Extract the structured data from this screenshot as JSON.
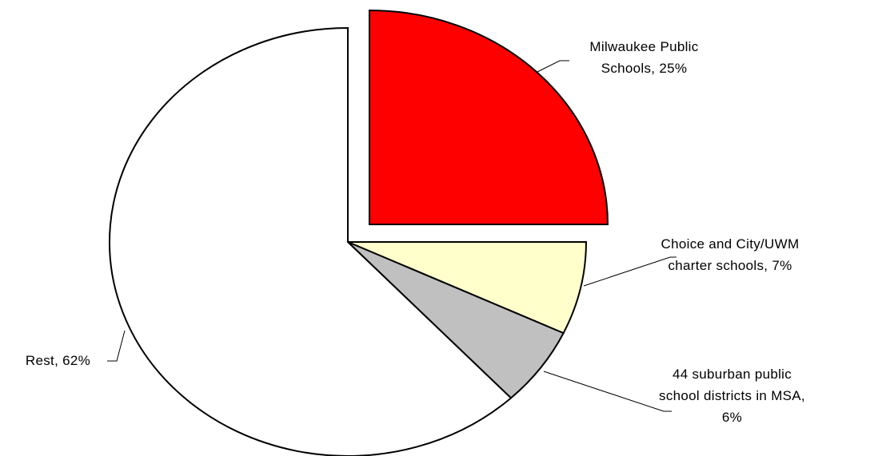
{
  "chart_data": {
    "type": "pie",
    "labels": [
      "Milwaukee Public Schools, 25%",
      "Choice and City/UWM charter schools, 7%",
      "44 suburban public school districts in MSA, 6%",
      "Rest, 62%"
    ],
    "values": [
      25,
      7,
      6,
      62
    ],
    "colors": [
      "#ff0000",
      "#ffffcc",
      "#c0c0c0",
      "#ffffff"
    ]
  }
}
